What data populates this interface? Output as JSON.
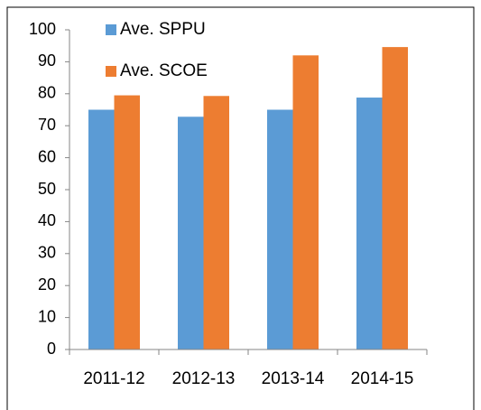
{
  "chart_data": {
    "type": "bar",
    "categories": [
      "2011-12",
      "2012-13",
      "2013-14",
      "2014-15"
    ],
    "series": [
      {
        "name": "Ave. SPPU",
        "color": "#5b9bd5",
        "values": [
          75,
          72.8,
          75,
          78.8
        ]
      },
      {
        "name": "Ave. SCOE",
        "color": "#ed7d31",
        "values": [
          79.5,
          79.3,
          92,
          94.6
        ]
      }
    ],
    "ylim": [
      0,
      100
    ],
    "yticks": [
      0,
      10,
      20,
      30,
      40,
      50,
      60,
      70,
      80,
      90,
      100
    ],
    "grid": false,
    "legend": "upper left"
  }
}
